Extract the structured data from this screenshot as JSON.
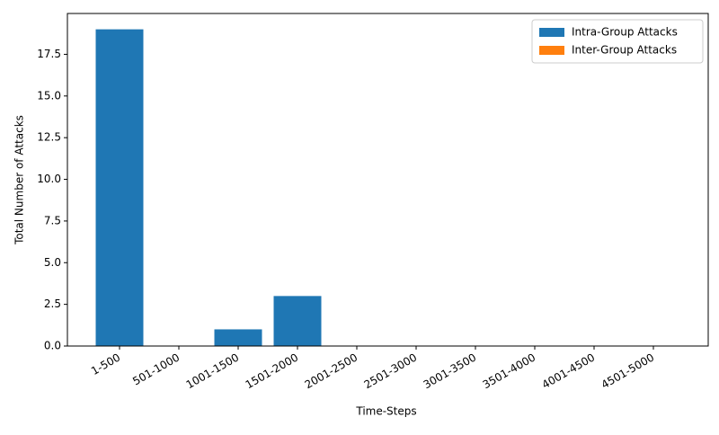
{
  "chart_data": {
    "type": "stacked_bar",
    "x_label": "Time-Steps",
    "y_label": "Total Number of Attacks",
    "categories": [
      "1-500",
      "501-1000",
      "1001-1500",
      "1501-2000",
      "2001-2500",
      "2501-3000",
      "3001-3500",
      "3501-4000",
      "4001-4500",
      "4501-5000"
    ],
    "series": [
      {
        "name": "Intra-Group Attacks",
        "color": "#1f77b4",
        "values": [
          19,
          0,
          1,
          3,
          0,
          0,
          0,
          0,
          0,
          0
        ]
      },
      {
        "name": "Inter-Group Attacks",
        "color": "#ff7f0e",
        "values": [
          0,
          0,
          0,
          0,
          0,
          0,
          0,
          0,
          0,
          0
        ]
      }
    ],
    "ylim": [
      0,
      19.95
    ],
    "yticks": [
      {
        "value": 0,
        "label": "0.0"
      },
      2.5,
      {
        "value": 5,
        "label": "5.0"
      },
      7.5,
      {
        "value": 10,
        "label": "10.0"
      },
      12.5,
      {
        "value": 15,
        "label": "15.0"
      },
      17.5
    ],
    "legend": "upper-right",
    "grid": false
  }
}
